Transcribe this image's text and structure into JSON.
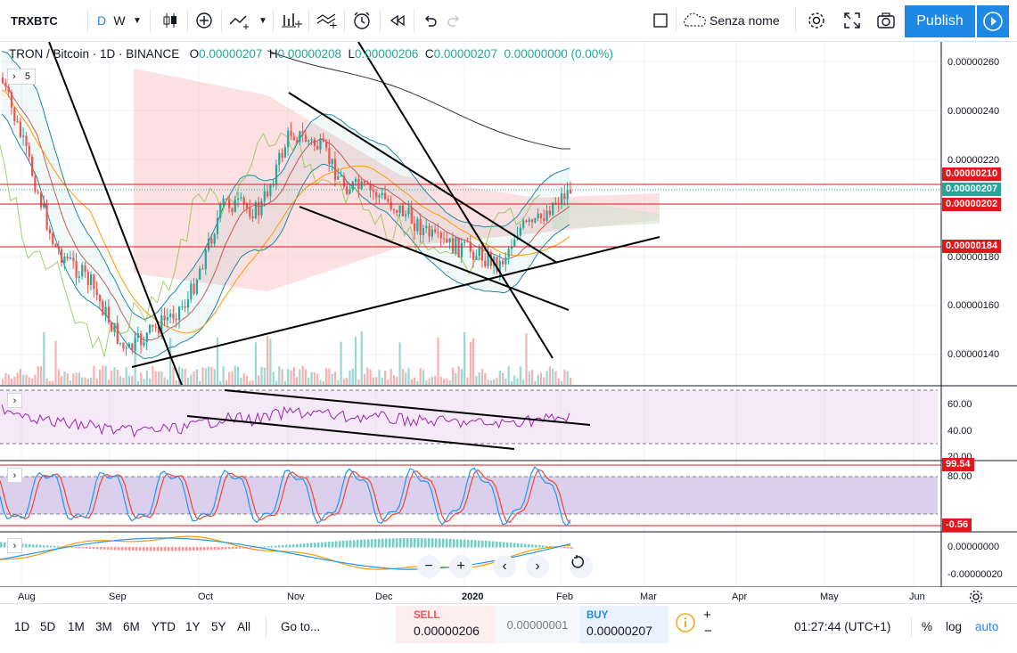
{
  "toolbar": {
    "symbol": "TRXBTC",
    "interval_d": "D",
    "interval_w": "W",
    "layout_name": "Senza nome",
    "publish_label": "Publish"
  },
  "legend": {
    "title": "TRON / Bitcoin · 1D · BINANCE",
    "open_label": "O",
    "open": "0.00000207",
    "high_label": "H",
    "high": "0.00000208",
    "low_label": "L",
    "low": "0.00000206",
    "close_label": "C",
    "close": "0.00000207",
    "change": "0.00000000 (0.00%)",
    "indicator_count": "5"
  },
  "price_axis": {
    "ticks": [
      "0.00000260",
      "0.00000240",
      "0.00000220",
      "0.00000180",
      "0.00000160",
      "0.00000140"
    ],
    "tags": [
      {
        "label": "0.00000210",
        "color": "#e0171b"
      },
      {
        "label": "0.00000207",
        "color": "#26a69a"
      },
      {
        "label": "0.00000202",
        "color": "#e0171b"
      },
      {
        "label": "0.00000184",
        "color": "#e0171b"
      }
    ]
  },
  "rsi_axis": {
    "ticks": [
      "60.00",
      "40.00",
      "20.00"
    ]
  },
  "stoch_axis": {
    "ticks": [
      "80.00"
    ],
    "tags": [
      {
        "label": "99.54",
        "color": "#e0171b"
      },
      {
        "label": "-0.56",
        "color": "#e0171b"
      }
    ]
  },
  "macd_axis": {
    "ticks": [
      "0.00000000",
      "-0.00000020"
    ]
  },
  "time_axis": [
    "Aug",
    "Sep",
    "Oct",
    "Nov",
    "Dec",
    "2020",
    "Feb",
    "Mar",
    "Apr",
    "May",
    "Jun"
  ],
  "nav": {
    "minus": "−",
    "plus": "+",
    "left": "‹",
    "right": "›"
  },
  "bottom": {
    "ranges": [
      "1D",
      "5D",
      "1M",
      "3M",
      "6M",
      "YTD",
      "1Y",
      "5Y",
      "All"
    ],
    "goto": "Go to...",
    "sell_label": "SELL",
    "sell_value": "0.00000206",
    "spread": "0.00000001",
    "buy_label": "BUY",
    "buy_value": "0.00000207",
    "clock": "01:27:44 (UTC+1)",
    "percent": "%",
    "log": "log",
    "auto": "auto"
  },
  "colors": {
    "up": "#26a69a",
    "down": "#ef5350",
    "accent": "#1e88e5",
    "rsi_line": "#9c27b0",
    "stoch_k": "#2196f3",
    "stoch_d": "#f44336"
  }
}
